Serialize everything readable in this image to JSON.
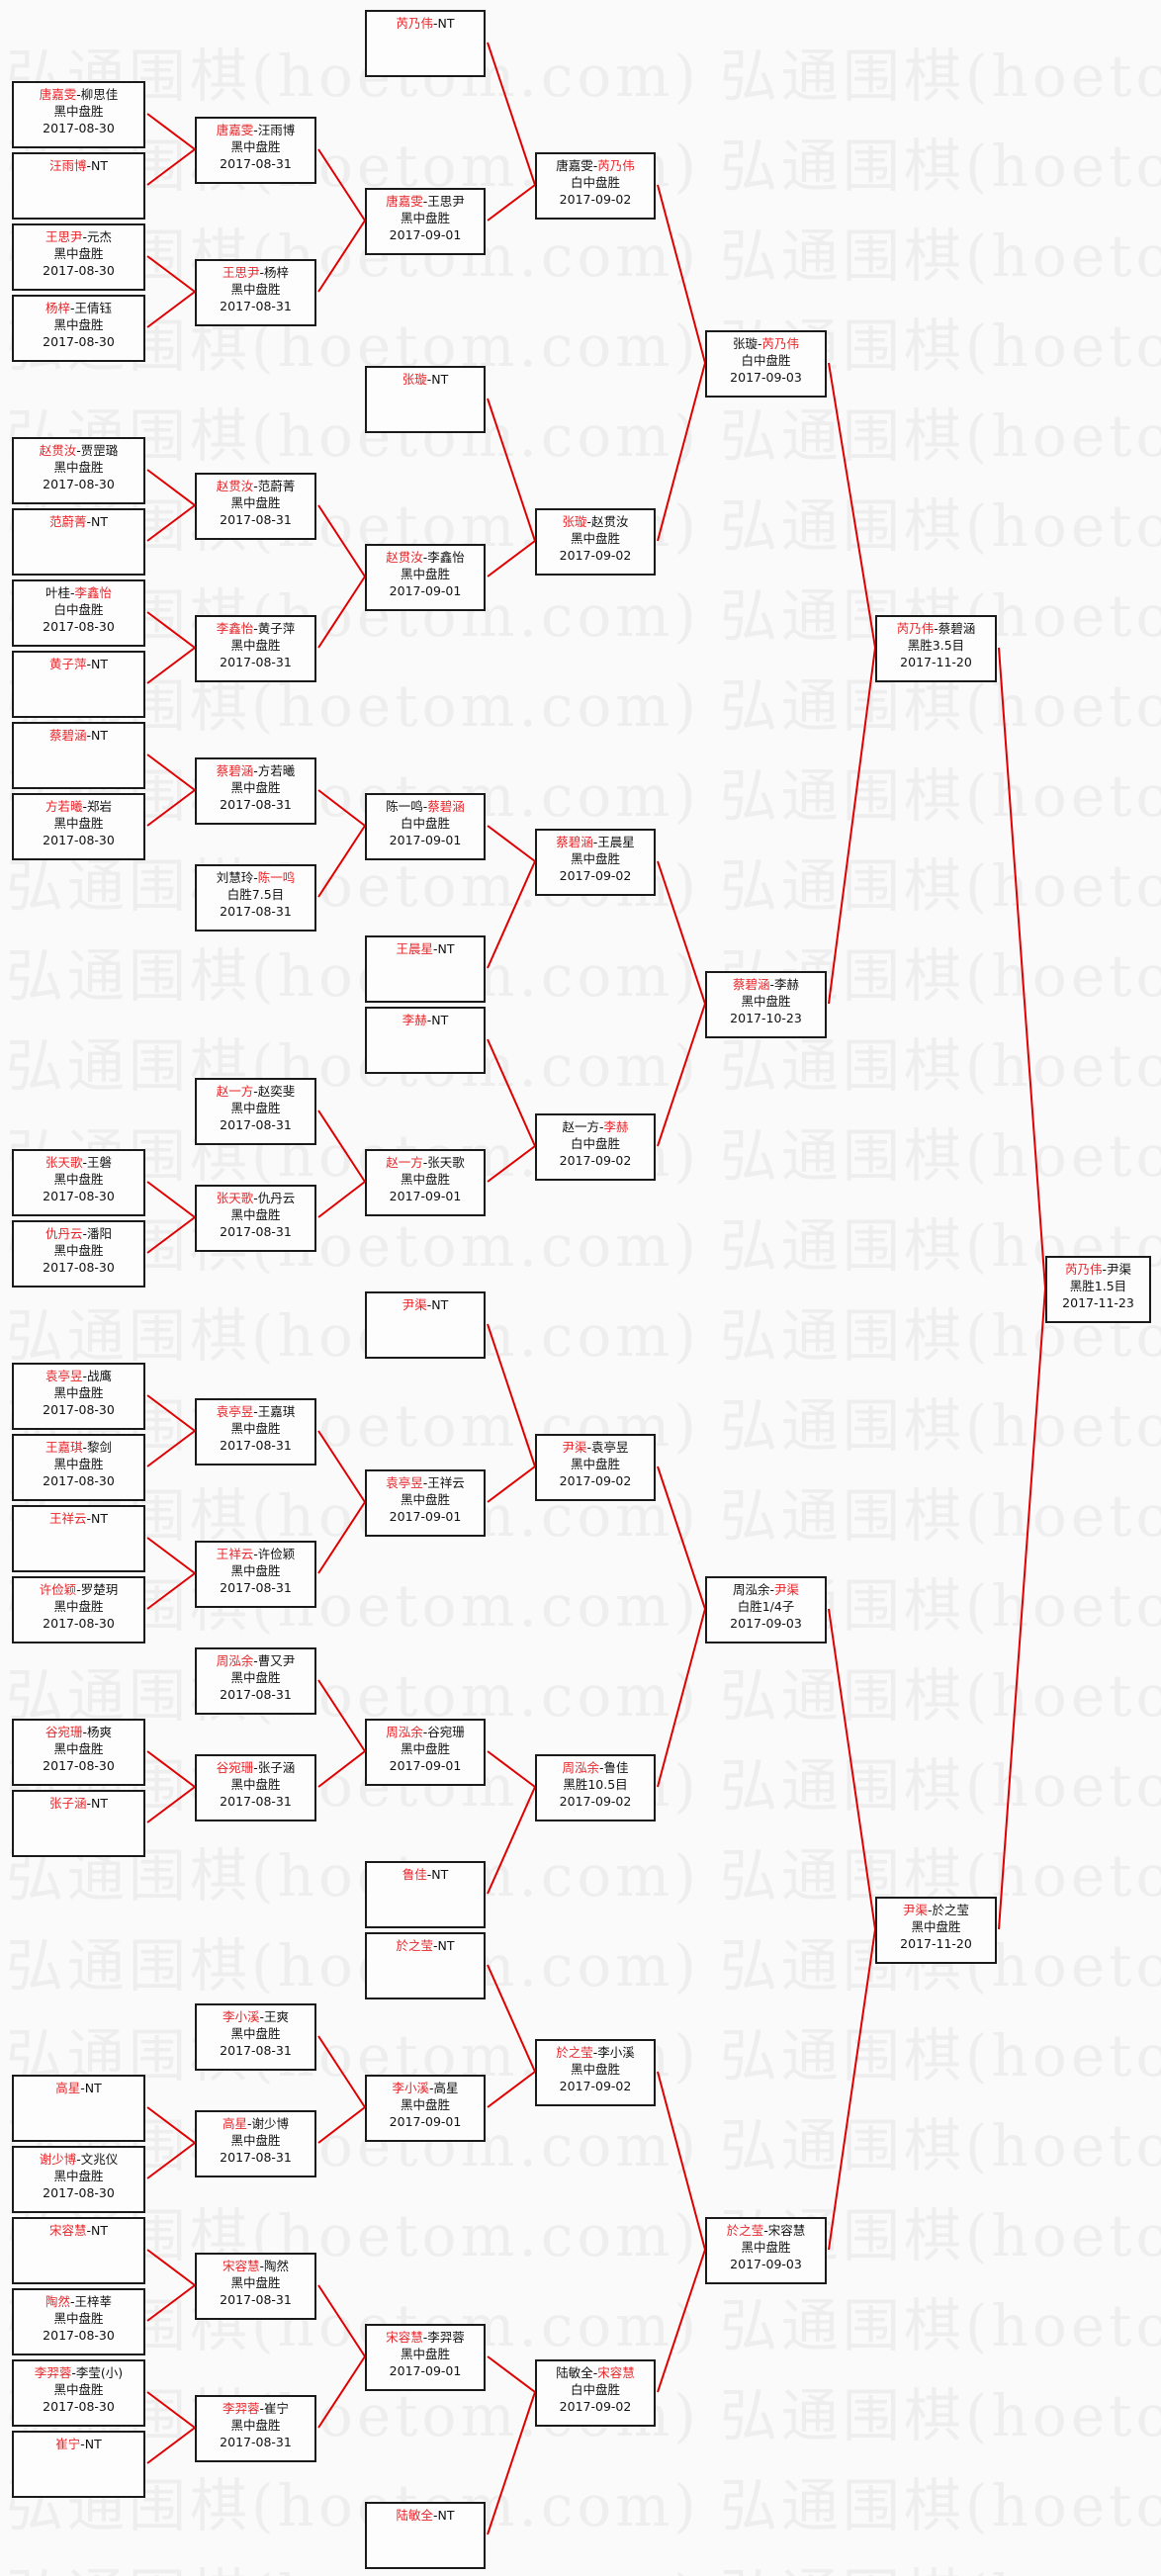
{
  "watermark": "弘通围棋(hoetom.com)",
  "colors": {
    "winner": "#e8262a",
    "connector": "#e00000",
    "border": "#1a1a1a"
  },
  "rounds": [
    {
      "matches": [
        {
          "p1": "唐嘉雯",
          "p2": "柳思佳",
          "red": 1,
          "result": "黑中盘胜",
          "date": "2017-08-30"
        },
        {
          "p1": "汪雨博",
          "p2": "NT",
          "red": 1
        },
        {
          "p1": "王思尹",
          "p2": "元杰",
          "red": 1,
          "result": "黑中盘胜",
          "date": "2017-08-30"
        },
        {
          "p1": "杨梓",
          "p2": "王倩钰",
          "red": 1,
          "result": "黑中盘胜",
          "date": "2017-08-30"
        },
        {
          "p1": "赵贯汝",
          "p2": "贾罡璐",
          "red": 1,
          "result": "黑中盘胜",
          "date": "2017-08-30"
        },
        {
          "p1": "范蔚菁",
          "p2": "NT",
          "red": 1
        },
        {
          "p1": "叶桂",
          "p2": "李鑫怡",
          "red": 2,
          "result": "白中盘胜",
          "date": "2017-08-30"
        },
        {
          "p1": "黄子萍",
          "p2": "NT",
          "red": 1
        },
        {
          "p1": "蔡碧涵",
          "p2": "NT",
          "red": 1
        },
        {
          "p1": "方若曦",
          "p2": "郑岩",
          "red": 1,
          "result": "黑中盘胜",
          "date": "2017-08-30"
        },
        {
          "p1": "张天歌",
          "p2": "王磐",
          "red": 1,
          "result": "黑中盘胜",
          "date": "2017-08-30"
        },
        {
          "p1": "仇丹云",
          "p2": "潘阳",
          "red": 1,
          "result": "黑中盘胜",
          "date": "2017-08-30"
        },
        {
          "p1": "袁亭昱",
          "p2": "战鹰",
          "red": 1,
          "result": "黑中盘胜",
          "date": "2017-08-30"
        },
        {
          "p1": "王嘉琪",
          "p2": "黎剑",
          "red": 1,
          "result": "黑中盘胜",
          "date": "2017-08-30"
        },
        {
          "p1": "王祥云",
          "p2": "NT",
          "red": 1
        },
        {
          "p1": "许俭颖",
          "p2": "罗楚玥",
          "red": 1,
          "result": "黑中盘胜",
          "date": "2017-08-30"
        },
        {
          "p1": "谷宛珊",
          "p2": "杨爽",
          "red": 1,
          "result": "黑中盘胜",
          "date": "2017-08-30"
        },
        {
          "p1": "张子涵",
          "p2": "NT",
          "red": 1
        },
        {
          "p1": "高星",
          "p2": "NT",
          "red": 1
        },
        {
          "p1": "谢少博",
          "p2": "文兆仪",
          "red": 1,
          "result": "黑中盘胜",
          "date": "2017-08-30"
        },
        {
          "p1": "宋容慧",
          "p2": "NT",
          "red": 1
        },
        {
          "p1": "陶然",
          "p2": "王梓莘",
          "red": 1,
          "result": "黑中盘胜",
          "date": "2017-08-30"
        },
        {
          "p1": "李羿蓉",
          "p2": "李莹(小)",
          "red": 1,
          "result": "黑中盘胜",
          "date": "2017-08-30"
        },
        {
          "p1": "崔宁",
          "p2": "NT",
          "red": 1
        }
      ]
    },
    {
      "matches": [
        {
          "p1": "唐嘉雯",
          "p2": "汪雨博",
          "red": 1,
          "result": "黑中盘胜",
          "date": "2017-08-31"
        },
        {
          "p1": "王思尹",
          "p2": "杨梓",
          "red": 1,
          "result": "黑中盘胜",
          "date": "2017-08-31"
        },
        {
          "p1": "赵贯汝",
          "p2": "范蔚菁",
          "red": 1,
          "result": "黑中盘胜",
          "date": "2017-08-31"
        },
        {
          "p1": "李鑫怡",
          "p2": "黄子萍",
          "red": 1,
          "result": "黑中盘胜",
          "date": "2017-08-31"
        },
        {
          "p1": "蔡碧涵",
          "p2": "方若曦",
          "red": 1,
          "result": "黑中盘胜",
          "date": "2017-08-31"
        },
        {
          "p1": "刘慧玲",
          "p2": "陈一鸣",
          "red": 2,
          "result": "白胜7.5目",
          "date": "2017-08-31"
        },
        {
          "p1": "赵一方",
          "p2": "赵奕斐",
          "red": 1,
          "result": "黑中盘胜",
          "date": "2017-08-31"
        },
        {
          "p1": "张天歌",
          "p2": "仇丹云",
          "red": 1,
          "result": "黑中盘胜",
          "date": "2017-08-31"
        },
        {
          "p1": "袁亭昱",
          "p2": "王嘉琪",
          "red": 1,
          "result": "黑中盘胜",
          "date": "2017-08-31"
        },
        {
          "p1": "王祥云",
          "p2": "许俭颖",
          "red": 1,
          "result": "黑中盘胜",
          "date": "2017-08-31"
        },
        {
          "p1": "周泓余",
          "p2": "曹又尹",
          "red": 1,
          "result": "黑中盘胜",
          "date": "2017-08-31"
        },
        {
          "p1": "谷宛珊",
          "p2": "张子涵",
          "red": 1,
          "result": "黑中盘胜",
          "date": "2017-08-31"
        },
        {
          "p1": "李小溪",
          "p2": "王爽",
          "red": 1,
          "result": "黑中盘胜",
          "date": "2017-08-31"
        },
        {
          "p1": "高星",
          "p2": "谢少博",
          "red": 1,
          "result": "黑中盘胜",
          "date": "2017-08-31"
        },
        {
          "p1": "宋容慧",
          "p2": "陶然",
          "red": 1,
          "result": "黑中盘胜",
          "date": "2017-08-31"
        },
        {
          "p1": "李羿蓉",
          "p2": "崔宁",
          "red": 1,
          "result": "黑中盘胜",
          "date": "2017-08-31"
        }
      ]
    },
    {
      "matches": [
        {
          "p1": "芮乃伟",
          "p2": "NT",
          "red": 1
        },
        {
          "p1": "唐嘉雯",
          "p2": "王思尹",
          "red": 1,
          "result": "黑中盘胜",
          "date": "2017-09-01"
        },
        {
          "p1": "张璇",
          "p2": "NT",
          "red": 1
        },
        {
          "p1": "赵贯汝",
          "p2": "李鑫怡",
          "red": 1,
          "result": "黑中盘胜",
          "date": "2017-09-01"
        },
        {
          "p1": "陈一鸣",
          "p2": "蔡碧涵",
          "red": 2,
          "result": "白中盘胜",
          "date": "2017-09-01"
        },
        {
          "p1": "王晨星",
          "p2": "NT",
          "red": 1
        },
        {
          "p1": "李赫",
          "p2": "NT",
          "red": 1
        },
        {
          "p1": "赵一方",
          "p2": "张天歌",
          "red": 1,
          "result": "黑中盘胜",
          "date": "2017-09-01"
        },
        {
          "p1": "尹渠",
          "p2": "NT",
          "red": 1
        },
        {
          "p1": "袁亭昱",
          "p2": "王祥云",
          "red": 1,
          "result": "黑中盘胜",
          "date": "2017-09-01"
        },
        {
          "p1": "周泓余",
          "p2": "谷宛珊",
          "red": 1,
          "result": "黑中盘胜",
          "date": "2017-09-01"
        },
        {
          "p1": "鲁佳",
          "p2": "NT",
          "red": 1
        },
        {
          "p1": "於之莹",
          "p2": "NT",
          "red": 1
        },
        {
          "p1": "李小溪",
          "p2": "高星",
          "red": 1,
          "result": "黑中盘胜",
          "date": "2017-09-01"
        },
        {
          "p1": "宋容慧",
          "p2": "李羿蓉",
          "red": 1,
          "result": "黑中盘胜",
          "date": "2017-09-01"
        },
        {
          "p1": "陆敏全",
          "p2": "NT",
          "red": 1
        }
      ]
    },
    {
      "matches": [
        {
          "p1": "唐嘉雯",
          "p2": "芮乃伟",
          "red": 2,
          "result": "白中盘胜",
          "date": "2017-09-02"
        },
        {
          "p1": "张璇",
          "p2": "赵贯汝",
          "red": 1,
          "result": "黑中盘胜",
          "date": "2017-09-02"
        },
        {
          "p1": "蔡碧涵",
          "p2": "王晨星",
          "red": 1,
          "result": "黑中盘胜",
          "date": "2017-09-02"
        },
        {
          "p1": "赵一方",
          "p2": "李赫",
          "red": 2,
          "result": "白中盘胜",
          "date": "2017-09-02"
        },
        {
          "p1": "尹渠",
          "p2": "袁亭昱",
          "red": 1,
          "result": "黑中盘胜",
          "date": "2017-09-02"
        },
        {
          "p1": "周泓余",
          "p2": "鲁佳",
          "red": 1,
          "result": "黑胜10.5目",
          "date": "2017-09-02"
        },
        {
          "p1": "於之莹",
          "p2": "李小溪",
          "red": 1,
          "result": "黑中盘胜",
          "date": "2017-09-02"
        },
        {
          "p1": "陆敏全",
          "p2": "宋容慧",
          "red": 2,
          "result": "白中盘胜",
          "date": "2017-09-02"
        }
      ]
    },
    {
      "matches": [
        {
          "p1": "张璇",
          "p2": "芮乃伟",
          "red": 2,
          "result": "白中盘胜",
          "date": "2017-09-03"
        },
        {
          "p1": "蔡碧涵",
          "p2": "李赫",
          "red": 1,
          "result": "黑中盘胜",
          "date": "2017-10-23"
        },
        {
          "p1": "周泓余",
          "p2": "尹渠",
          "red": 2,
          "result": "白胜1/4子",
          "date": "2017-09-03"
        },
        {
          "p1": "於之莹",
          "p2": "宋容慧",
          "red": 1,
          "result": "黑中盘胜",
          "date": "2017-09-03"
        }
      ]
    },
    {
      "matches": [
        {
          "p1": "芮乃伟",
          "p2": "蔡碧涵",
          "red": 1,
          "result": "黑胜3.5目",
          "date": "2017-11-20"
        },
        {
          "p1": "尹渠",
          "p2": "於之莹",
          "red": 1,
          "result": "黑中盘胜",
          "date": "2017-11-20"
        }
      ]
    },
    {
      "matches": [
        {
          "p1": "芮乃伟",
          "p2": "尹渠",
          "red": 1,
          "result": "黑胜1.5目",
          "date": "2017-11-23"
        }
      ]
    }
  ]
}
